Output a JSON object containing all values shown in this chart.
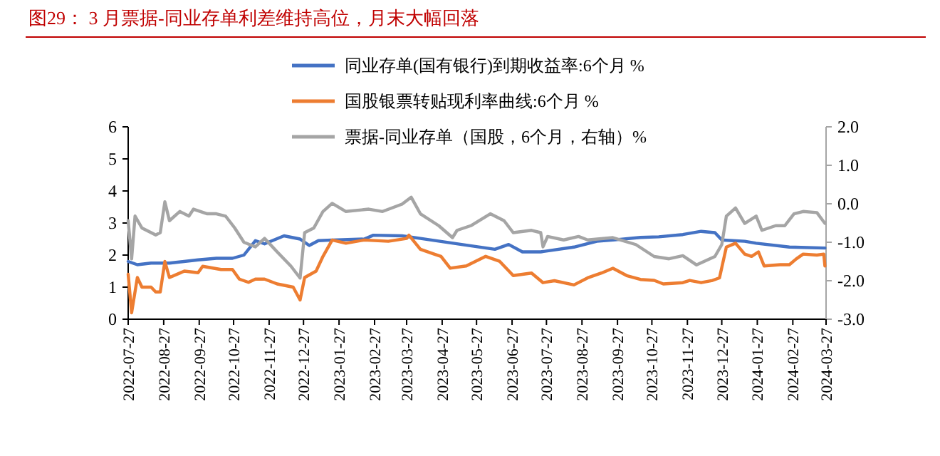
{
  "chart_data": {
    "type": "line",
    "title": "图29：  3 月票据-同业存单利差维持高位，月末大幅回落",
    "xlim": [
      "2022-07-27",
      "2024-03-27"
    ],
    "xticks": [
      "2022-07-27",
      "2022-08-27",
      "2022-09-27",
      "2022-10-27",
      "2022-11-27",
      "2022-12-27",
      "2023-01-27",
      "2023-02-27",
      "2023-03-27",
      "2023-04-27",
      "2023-05-27",
      "2023-06-27",
      "2023-07-27",
      "2023-08-27",
      "2023-09-27",
      "2023-10-27",
      "2023-11-27",
      "2023-12-27",
      "2024-01-27",
      "2024-02-27",
      "2024-03-27"
    ],
    "ylim": [
      0,
      6
    ],
    "yticks": [
      0,
      1,
      2,
      3,
      4,
      5,
      6
    ],
    "y2lim": [
      -3,
      2
    ],
    "y2ticks": [
      {
        "value": -3,
        "label": "-3.0"
      },
      {
        "value": -2,
        "label": "-2.0"
      },
      {
        "value": -1,
        "label": "-1.0"
      },
      {
        "value": 0,
        "label": "0.0"
      },
      {
        "value": 1,
        "label": "1.0"
      },
      {
        "value": 2,
        "label": "2.0"
      }
    ],
    "grid": false,
    "legend": "top",
    "marker": "none",
    "line_style": "solid",
    "series": [
      {
        "name": "同业存单(国有银行)到期收益率:6个月 %",
        "color": "#4472c4",
        "x": [
          "2022-07-27",
          "2022-08-04",
          "2022-08-16",
          "2022-09-01",
          "2022-09-26",
          "2022-10-12",
          "2022-10-26",
          "2022-11-05",
          "2022-11-15",
          "2022-11-23",
          "2022-12-10",
          "2022-12-24",
          "2023-01-01",
          "2023-01-09",
          "2023-01-21",
          "2023-02-18",
          "2023-02-26",
          "2023-03-23",
          "2023-04-08",
          "2023-05-14",
          "2023-06-12",
          "2023-06-24",
          "2023-07-06",
          "2023-07-22",
          "2023-08-20",
          "2023-09-09",
          "2023-09-23",
          "2023-10-17",
          "2023-11-02",
          "2023-11-23",
          "2023-12-09",
          "2023-12-21",
          "2023-12-27",
          "2024-01-16",
          "2024-01-26",
          "2024-02-24",
          "2024-03-26"
        ],
        "values": [
          1.8,
          1.7,
          1.75,
          1.75,
          1.85,
          1.9,
          1.9,
          2.0,
          2.45,
          2.35,
          2.6,
          2.5,
          2.3,
          2.45,
          2.47,
          2.5,
          2.62,
          2.6,
          2.52,
          2.33,
          2.18,
          2.33,
          2.1,
          2.1,
          2.25,
          2.43,
          2.47,
          2.55,
          2.57,
          2.64,
          2.74,
          2.7,
          2.47,
          2.43,
          2.37,
          2.25,
          2.22
        ]
      },
      {
        "name": "国股银票转贴现利率曲线:6个月 %",
        "color": "#ed7d31",
        "x": [
          "2022-07-27",
          "2022-07-30",
          "2022-08-04",
          "2022-08-08",
          "2022-08-16",
          "2022-08-20",
          "2022-08-24",
          "2022-08-28",
          "2022-09-01",
          "2022-09-14",
          "2022-09-26",
          "2022-09-30",
          "2022-10-16",
          "2022-10-26",
          "2022-11-01",
          "2022-11-09",
          "2022-11-15",
          "2022-11-23",
          "2022-12-04",
          "2022-12-18",
          "2022-12-24",
          "2022-12-28",
          "2023-01-07",
          "2023-01-13",
          "2023-01-21",
          "2023-02-02",
          "2023-02-18",
          "2023-03-11",
          "2023-03-27",
          "2023-03-29",
          "2023-04-08",
          "2023-04-20",
          "2023-04-26",
          "2023-05-04",
          "2023-05-18",
          "2023-06-04",
          "2023-06-16",
          "2023-06-28",
          "2023-07-14",
          "2023-07-24",
          "2023-08-03",
          "2023-08-20",
          "2023-09-01",
          "2023-09-13",
          "2023-09-23",
          "2023-10-05",
          "2023-10-17",
          "2023-10-29",
          "2023-11-06",
          "2023-11-23",
          "2023-11-29",
          "2023-12-09",
          "2023-12-19",
          "2023-12-25",
          "2023-12-31",
          "2024-01-08",
          "2024-01-16",
          "2024-01-22",
          "2024-01-28",
          "2024-02-02",
          "2024-02-16",
          "2024-02-24",
          "2024-03-01",
          "2024-03-07",
          "2024-03-19",
          "2024-03-25",
          "2024-03-26"
        ],
        "values": [
          1.4,
          0.2,
          1.3,
          1.0,
          1.0,
          0.85,
          0.85,
          1.8,
          1.3,
          1.5,
          1.45,
          1.65,
          1.55,
          1.55,
          1.25,
          1.15,
          1.25,
          1.25,
          1.1,
          1.0,
          0.6,
          1.3,
          1.5,
          1.96,
          2.47,
          2.37,
          2.47,
          2.43,
          2.52,
          2.62,
          2.18,
          2.03,
          1.96,
          1.59,
          1.66,
          1.96,
          1.81,
          1.36,
          1.44,
          1.14,
          1.2,
          1.07,
          1.29,
          1.44,
          1.59,
          1.36,
          1.24,
          1.21,
          1.1,
          1.14,
          1.21,
          1.14,
          1.21,
          1.29,
          2.25,
          2.37,
          2.03,
          1.96,
          2.1,
          1.66,
          1.7,
          1.7,
          1.88,
          2.03,
          2.0,
          2.03,
          1.66
        ]
      },
      {
        "name": "票据-同业存单（国股，6个月，右轴）%",
        "color": "#a5a5a5",
        "axis": "y2",
        "x": [
          "2022-07-27",
          "2022-07-30",
          "2022-08-02",
          "2022-08-08",
          "2022-08-16",
          "2022-08-20",
          "2022-08-24",
          "2022-08-28",
          "2022-09-01",
          "2022-09-10",
          "2022-09-18",
          "2022-09-22",
          "2022-10-04",
          "2022-10-12",
          "2022-10-20",
          "2022-10-28",
          "2022-11-05",
          "2022-11-15",
          "2022-11-23",
          "2022-12-04",
          "2022-12-16",
          "2022-12-24",
          "2022-12-28",
          "2023-01-05",
          "2023-01-13",
          "2023-01-21",
          "2023-02-02",
          "2023-02-22",
          "2023-03-06",
          "2023-03-23",
          "2023-03-31",
          "2023-04-08",
          "2023-04-24",
          "2023-05-06",
          "2023-05-10",
          "2023-05-22",
          "2023-06-08",
          "2023-06-20",
          "2023-06-28",
          "2023-07-14",
          "2023-07-22",
          "2023-07-24",
          "2023-07-28",
          "2023-08-11",
          "2023-08-24",
          "2023-09-01",
          "2023-09-23",
          "2023-10-13",
          "2023-10-29",
          "2023-11-11",
          "2023-11-23",
          "2023-12-05",
          "2023-12-21",
          "2023-12-27",
          "2023-12-31",
          "2024-01-08",
          "2024-01-16",
          "2024-01-26",
          "2024-01-31",
          "2024-02-12",
          "2024-02-20",
          "2024-02-28",
          "2024-03-07",
          "2024-03-19",
          "2024-03-26"
        ],
        "values": [
          -0.44,
          -1.43,
          -0.32,
          -0.63,
          -0.75,
          -0.81,
          -0.75,
          0.05,
          -0.44,
          -0.2,
          -0.32,
          -0.14,
          -0.26,
          -0.26,
          -0.32,
          -0.63,
          -1.0,
          -1.12,
          -0.9,
          -1.25,
          -1.62,
          -1.93,
          -0.75,
          -0.63,
          -0.2,
          0.01,
          -0.2,
          -0.14,
          -0.2,
          -0.01,
          0.17,
          -0.26,
          -0.57,
          -0.88,
          -0.69,
          -0.57,
          -0.26,
          -0.44,
          -0.75,
          -0.69,
          -0.75,
          -1.12,
          -0.85,
          -0.94,
          -0.85,
          -0.94,
          -0.88,
          -1.06,
          -1.37,
          -1.43,
          -1.35,
          -1.59,
          -1.37,
          -1.06,
          -0.32,
          -0.11,
          -0.51,
          -0.32,
          -0.69,
          -0.57,
          -0.57,
          -0.26,
          -0.2,
          -0.23,
          -0.51
        ]
      }
    ]
  }
}
